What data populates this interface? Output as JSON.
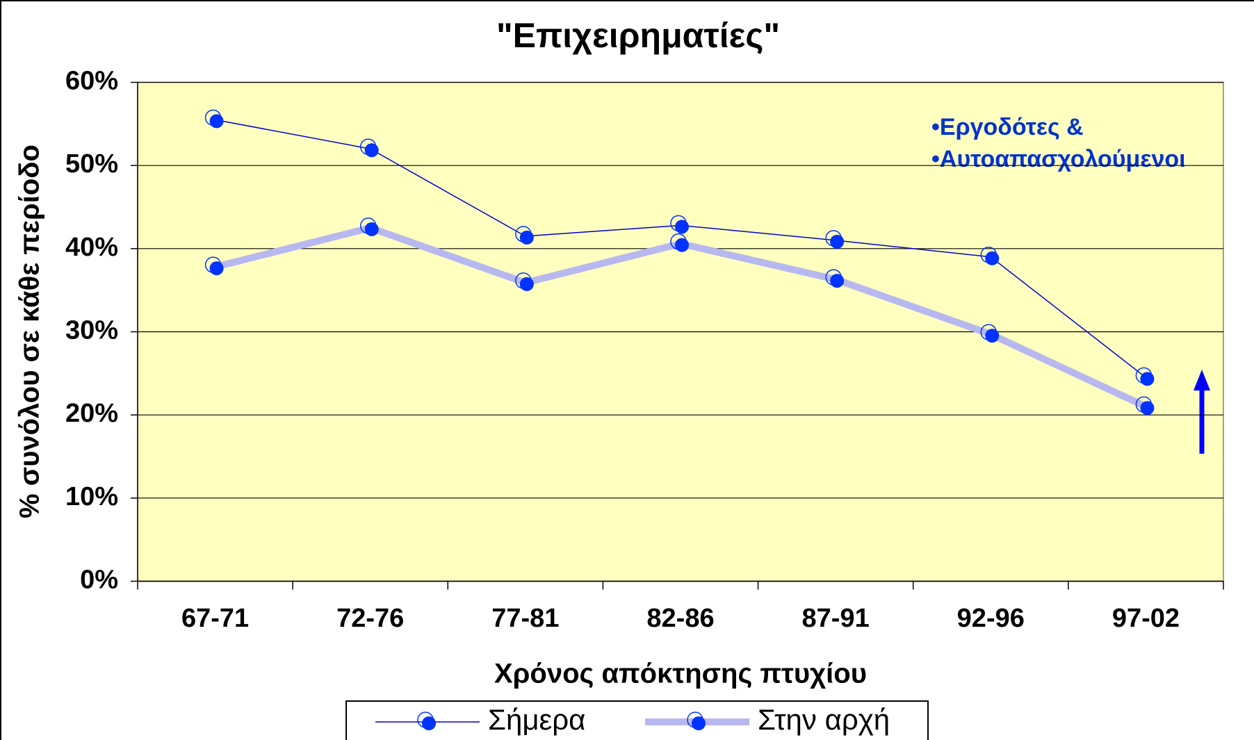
{
  "chart_data": {
    "type": "line",
    "title": "\"Επιχειρηματίες\"",
    "xlabel": "Χρόνος απόκτησης πτυχίου",
    "ylabel": "% συνόλου σε κάθε περίοδο",
    "annotations": [
      "•Εργοδότες &",
      "•Αυτοαπασχολούμενοι"
    ],
    "categories": [
      "67-71",
      "72-76",
      "77-81",
      "82-86",
      "87-91",
      "92-96",
      "97-02"
    ],
    "series": [
      {
        "name": "Σήμερα",
        "color": "#0000cc",
        "marker_color": "#0033ff",
        "values": [
          55.5,
          52,
          41.5,
          42.8,
          41,
          39,
          24.5
        ]
      },
      {
        "name": "Στην αρχή",
        "color": "#b8b8f0",
        "marker_color": "#0033ff",
        "values": [
          37.8,
          42.5,
          35.9,
          40.6,
          36.3,
          29.7,
          21
        ]
      }
    ],
    "ylim": [
      0,
      60
    ],
    "yticks": [
      {
        "value": 0,
        "label": "0%"
      },
      {
        "value": 10,
        "label": "10%"
      },
      {
        "value": 20,
        "label": "20%"
      },
      {
        "value": 30,
        "label": "30%"
      },
      {
        "value": 40,
        "label": "40%"
      },
      {
        "value": 50,
        "label": "50%"
      },
      {
        "value": 60,
        "label": "60%"
      }
    ],
    "grid": true,
    "legend": "bottom"
  }
}
